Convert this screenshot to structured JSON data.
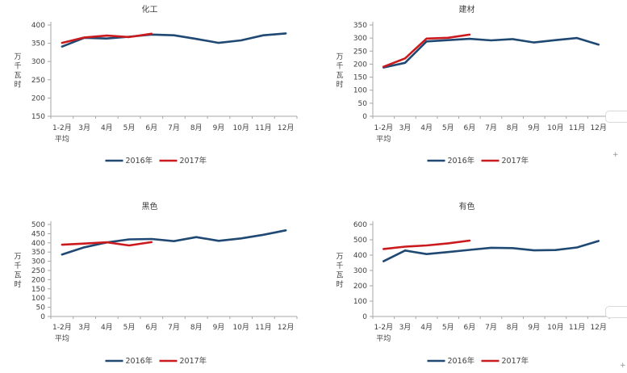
{
  "page": {
    "background": "#FFFFFF"
  },
  "colors": {
    "series_2016": "#1F4973",
    "series_2017": "#CB1A1E",
    "axis": "#A6A6A6",
    "text": "#3F3F3F",
    "fragment_border": "#D9D9D9",
    "plus_marker": "#8F8F8F"
  },
  "y_axis_title": "万千瓦时",
  "categories_lines": [
    [
      "1-2月",
      "平均"
    ],
    [
      "3月"
    ],
    [
      "4月"
    ],
    [
      "5月"
    ],
    [
      "6月"
    ],
    [
      "7月"
    ],
    [
      "8月"
    ],
    [
      "9月"
    ],
    [
      "10月"
    ],
    [
      "11月"
    ],
    [
      "12月"
    ]
  ],
  "legend": {
    "items": [
      {
        "label": "2016年",
        "color": "#1F4973"
      },
      {
        "label": "2017年",
        "color": "#CB1A1E"
      }
    ],
    "position": "bottom"
  },
  "chart_data": [
    {
      "type": "line",
      "title": "化工",
      "ylabel": "万千瓦时",
      "xlabel": "",
      "ylim": [
        150,
        400
      ],
      "ystep": 50,
      "grid": false,
      "legend_position": "bottom",
      "categories": [
        "1-2月平均",
        "3月",
        "4月",
        "5月",
        "6月",
        "7月",
        "8月",
        "9月",
        "10月",
        "11月",
        "12月"
      ],
      "series": [
        {
          "name": "2016年",
          "color": "#1F4973",
          "values": [
            341,
            365,
            363,
            368,
            374,
            372,
            362,
            351,
            358,
            372,
            377
          ]
        },
        {
          "name": "2017年",
          "color": "#CB1A1E",
          "values": [
            351,
            366,
            371,
            367,
            376
          ]
        }
      ]
    },
    {
      "type": "line",
      "title": "建材",
      "ylabel": "万千瓦时",
      "xlabel": "",
      "ylim": [
        0,
        350
      ],
      "ystep": 50,
      "grid": false,
      "legend_position": "bottom",
      "categories": [
        "1-2月平均",
        "3月",
        "4月",
        "5月",
        "6月",
        "7月",
        "8月",
        "9月",
        "10月",
        "11月",
        "12月"
      ],
      "series": [
        {
          "name": "2016年",
          "color": "#1F4973",
          "values": [
            187,
            205,
            287,
            292,
            297,
            291,
            296,
            283,
            292,
            300,
            275
          ]
        },
        {
          "name": "2017年",
          "color": "#CB1A1E",
          "values": [
            190,
            222,
            298,
            301,
            313
          ]
        }
      ]
    },
    {
      "type": "line",
      "title": "黑色",
      "ylabel": "万千瓦时",
      "xlabel": "",
      "ylim": [
        0,
        500
      ],
      "ystep": 50,
      "grid": false,
      "legend_position": "bottom",
      "categories": [
        "1-2月平均",
        "3月",
        "4月",
        "5月",
        "6月",
        "7月",
        "8月",
        "9月",
        "10月",
        "11月",
        "12月"
      ],
      "series": [
        {
          "name": "2016年",
          "color": "#1F4973",
          "values": [
            337,
            376,
            402,
            419,
            421,
            409,
            431,
            411,
            424,
            444,
            468
          ]
        },
        {
          "name": "2017年",
          "color": "#CB1A1E",
          "values": [
            390,
            396,
            403,
            386,
            404
          ]
        }
      ]
    },
    {
      "type": "line",
      "title": "有色",
      "ylabel": "万千瓦时",
      "xlabel": "",
      "ylim": [
        0,
        600
      ],
      "ystep": 100,
      "grid": false,
      "legend_position": "bottom",
      "categories": [
        "1-2月平均",
        "3月",
        "4月",
        "5月",
        "6月",
        "7月",
        "8月",
        "9月",
        "10月",
        "11月",
        "12月"
      ],
      "series": [
        {
          "name": "2016年",
          "color": "#1F4973",
          "values": [
            360,
            430,
            407,
            420,
            434,
            448,
            446,
            431,
            433,
            450,
            492
          ]
        },
        {
          "name": "2017年",
          "color": "#CB1A1E",
          "values": [
            440,
            455,
            463,
            477,
            495
          ]
        }
      ]
    }
  ],
  "right_edge": {
    "plus_glyph": "+"
  }
}
